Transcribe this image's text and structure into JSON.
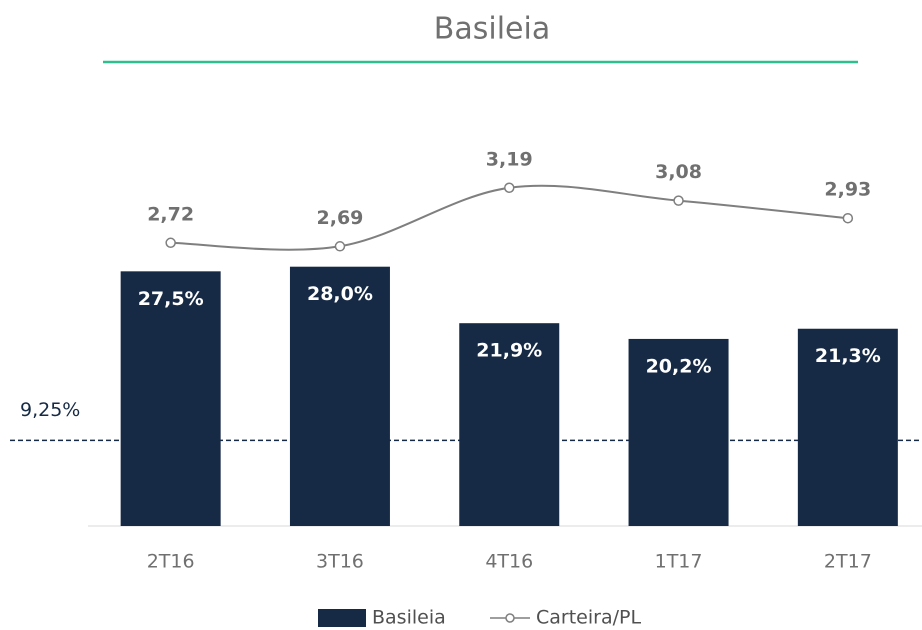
{
  "chart_data": {
    "type": "bar",
    "title": "Basileia",
    "categories": [
      "2T16",
      "3T16",
      "4T16",
      "1T17",
      "2T17"
    ],
    "series": [
      {
        "name": "Basileia",
        "type": "bar",
        "color": "#172a45",
        "values": [
          27.5,
          28.0,
          21.9,
          20.2,
          21.3
        ],
        "value_labels": [
          "27,5%",
          "28,0%",
          "21,9%",
          "20,2%",
          "21,3%"
        ]
      },
      {
        "name": "Carteira/PL",
        "type": "line",
        "axis": "y2",
        "color": "#7f7f7f",
        "values": [
          2.72,
          2.69,
          3.19,
          3.08,
          2.93
        ],
        "value_labels": [
          "2,72",
          "2,69",
          "3,19",
          "3,08",
          "2,93"
        ]
      }
    ],
    "ylim": [
      0,
      46
    ],
    "y2lim": [
      0.3,
      3.94
    ],
    "reference_line": {
      "value": 9.25,
      "label": "9,25%"
    }
  }
}
